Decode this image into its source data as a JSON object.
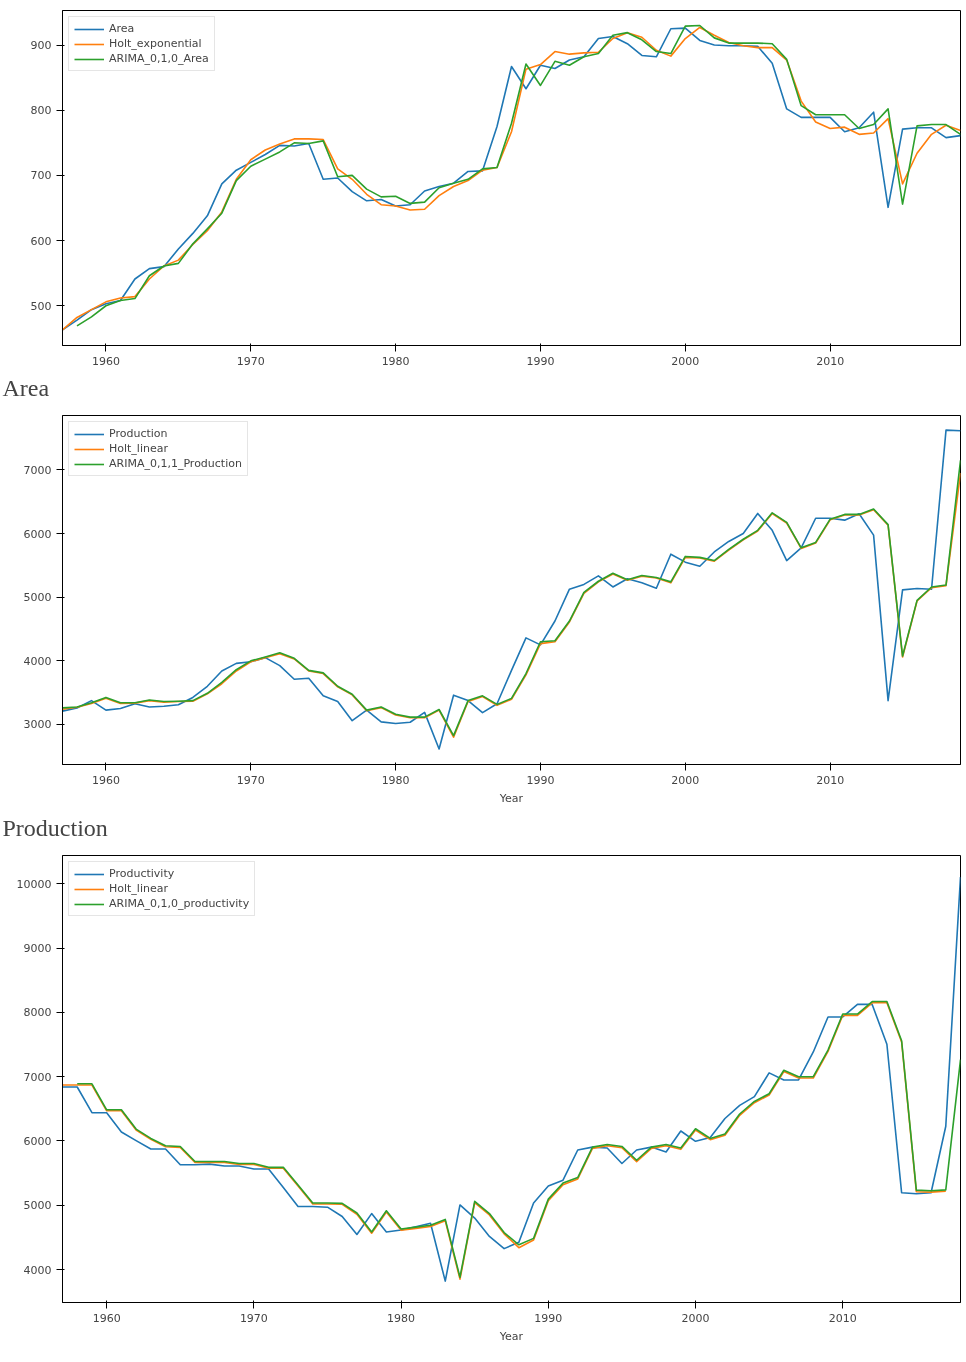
{
  "chart_data": [
    {
      "type": "line",
      "title": "Area",
      "xlim": [
        1957,
        2019
      ],
      "ylim": [
        439,
        953
      ],
      "xticks": [
        1960,
        1970,
        1980,
        1990,
        2000,
        2010
      ],
      "yticks": [
        500,
        600,
        700,
        800,
        900
      ],
      "grid": false,
      "legend": "top left",
      "line_style": "solid",
      "marker": "none",
      "x": [
        1957,
        1958,
        1959,
        1960,
        1961,
        1962,
        1963,
        1964,
        1965,
        1966,
        1967,
        1968,
        1969,
        1970,
        1971,
        1972,
        1973,
        1974,
        1975,
        1976,
        1977,
        1978,
        1979,
        1980,
        1981,
        1982,
        1983,
        1984,
        1985,
        1986,
        1987,
        1988,
        1989,
        1990,
        1991,
        1992,
        1993,
        1994,
        1995,
        1996,
        1997,
        1998,
        1999,
        2000,
        2001,
        2002,
        2003,
        2004,
        2005,
        2006,
        2007,
        2008,
        2009,
        2010,
        2011,
        2012,
        2013,
        2014,
        2015,
        2016,
        2017,
        2018,
        2019
      ],
      "series": [
        {
          "name": "Area",
          "color": "#1f77b4",
          "values": [
            463,
            478,
            494,
            503,
            508,
            541,
            557,
            560,
            587,
            611,
            638,
            687,
            708,
            720,
            732,
            746,
            745,
            749,
            694,
            696,
            675,
            661,
            663,
            653,
            655,
            676,
            683,
            688,
            706,
            707,
            775,
            867,
            833,
            869,
            864,
            877,
            882,
            910,
            913,
            902,
            884,
            882,
            925,
            926,
            907,
            900,
            899,
            899,
            898,
            872,
            802,
            789,
            789,
            789,
            767,
            773,
            797,
            651,
            771,
            773,
            773,
            758,
            761
          ]
        },
        {
          "name": "Holt_exponential",
          "color": "#ff7f0e",
          "values": [
            463,
            482,
            494,
            506,
            512,
            514,
            541,
            561,
            570,
            594,
            615,
            644,
            694,
            724,
            739,
            748,
            756,
            756,
            755,
            710,
            694,
            671,
            655,
            653,
            647,
            648,
            669,
            683,
            692,
            708,
            712,
            767,
            863,
            870,
            890,
            886,
            888,
            889,
            910,
            919,
            912,
            892,
            883,
            910,
            927,
            915,
            904,
            899,
            896,
            896,
            877,
            814,
            782,
            772,
            774,
            763,
            765,
            787,
            687,
            734,
            763,
            777,
            769
          ]
        },
        {
          "name": "ARIMA_0,1,0_Area",
          "color": "#2ca02c",
          "values": [
            null,
            469,
            483,
            500,
            508,
            511,
            546,
            561,
            565,
            595,
            618,
            642,
            692,
            714,
            725,
            736,
            750,
            749,
            753,
            698,
            700,
            679,
            667,
            668,
            657,
            659,
            681,
            688,
            694,
            710,
            712,
            780,
            871,
            838,
            875,
            869,
            882,
            887,
            915,
            919,
            908,
            890,
            887,
            929,
            930,
            911,
            903,
            903,
            903,
            902,
            878,
            807,
            793,
            793,
            793,
            772,
            778,
            802,
            656,
            776,
            778,
            778,
            763
          ]
        }
      ]
    },
    {
      "type": "line",
      "title": "Production",
      "xlabel": "Year",
      "xlim": [
        1957,
        2019
      ],
      "ylim": [
        2371,
        7854
      ],
      "xticks": [
        1960,
        1970,
        1980,
        1990,
        2000,
        2010
      ],
      "yticks": [
        3000,
        4000,
        5000,
        6000,
        7000
      ],
      "grid": false,
      "legend": "top left",
      "line_style": "solid",
      "marker": "none",
      "x": [
        1957,
        1958,
        1959,
        1960,
        1961,
        1962,
        1963,
        1964,
        1965,
        1966,
        1967,
        1968,
        1969,
        1970,
        1971,
        1972,
        1973,
        1974,
        1975,
        1976,
        1977,
        1978,
        1979,
        1980,
        1981,
        1982,
        1983,
        1984,
        1985,
        1986,
        1987,
        1988,
        1989,
        1990,
        1991,
        1992,
        1993,
        1994,
        1995,
        1996,
        1997,
        1998,
        1999,
        2000,
        2001,
        2002,
        2003,
        2004,
        2005,
        2006,
        2007,
        2008,
        2009,
        2010,
        2011,
        2012,
        2013,
        2014,
        2015,
        2016,
        2017,
        2018,
        2019
      ],
      "series": [
        {
          "name": "Production",
          "color": "#1f77b4",
          "values": [
            3210,
            3260,
            3375,
            3225,
            3250,
            3325,
            3275,
            3285,
            3310,
            3425,
            3600,
            3840,
            3960,
            3985,
            4050,
            3925,
            3710,
            3725,
            3450,
            3360,
            3060,
            3225,
            3040,
            3015,
            3035,
            3190,
            2615,
            3460,
            3375,
            3185,
            3325,
            3850,
            4360,
            4250,
            4625,
            5125,
            5200,
            5335,
            5160,
            5290,
            5225,
            5140,
            5675,
            5550,
            5485,
            5710,
            5875,
            6000,
            6315,
            6050,
            5575,
            5775,
            6240,
            6240,
            6210,
            6310,
            5975,
            3375,
            5115,
            5135,
            5125,
            7625,
            7615
          ]
        },
        {
          "name": "Holt_linear",
          "color": "#ff7f0e",
          "values": [
            3240,
            3270,
            3330,
            3410,
            3330,
            3335,
            3375,
            3350,
            3360,
            3365,
            3480,
            3640,
            3840,
            3985,
            4050,
            4110,
            4030,
            3840,
            3800,
            3590,
            3465,
            3215,
            3265,
            3150,
            3105,
            3105,
            3225,
            2800,
            3360,
            3440,
            3300,
            3395,
            3780,
            4270,
            4300,
            4610,
            5060,
            5240,
            5365,
            5265,
            5330,
            5300,
            5225,
            5625,
            5615,
            5565,
            5740,
            5900,
            6040,
            6315,
            6165,
            5765,
            5850,
            6215,
            6290,
            6290,
            6375,
            6130,
            4060,
            4940,
            5150,
            5180,
            6950
          ]
        },
        {
          "name": "ARIMA_0,1,1_Production",
          "color": "#2ca02c",
          "values": [
            3260,
            3275,
            3340,
            3425,
            3340,
            3340,
            3385,
            3360,
            3365,
            3375,
            3490,
            3660,
            3860,
            4000,
            4060,
            4125,
            4040,
            3850,
            3810,
            3600,
            3475,
            3225,
            3275,
            3160,
            3115,
            3115,
            3235,
            2825,
            3375,
            3450,
            3315,
            3410,
            3800,
            4300,
            4315,
            4625,
            5075,
            5250,
            5375,
            5275,
            5340,
            5310,
            5240,
            5640,
            5625,
            5575,
            5750,
            5910,
            6050,
            6325,
            6175,
            5775,
            5860,
            6225,
            6300,
            6300,
            6385,
            6140,
            4075,
            4950,
            5160,
            5190,
            7150
          ]
        }
      ]
    },
    {
      "type": "line",
      "xlabel": "Year",
      "xlim": [
        1957,
        2018
      ],
      "ylim": [
        3487,
        10442
      ],
      "xticks": [
        1960,
        1970,
        1980,
        1990,
        2000,
        2010
      ],
      "yticks": [
        4000,
        5000,
        6000,
        7000,
        8000,
        9000,
        10000
      ],
      "grid": false,
      "legend": "top left",
      "line_style": "solid",
      "marker": "none",
      "x": [
        1957,
        1958,
        1959,
        1960,
        1961,
        1962,
        1963,
        1964,
        1965,
        1966,
        1967,
        1968,
        1969,
        1970,
        1971,
        1972,
        1973,
        1974,
        1975,
        1976,
        1977,
        1978,
        1979,
        1980,
        1981,
        1982,
        1983,
        1984,
        1985,
        1986,
        1987,
        1988,
        1989,
        1990,
        1991,
        1992,
        1993,
        1994,
        1995,
        1996,
        1997,
        1998,
        1999,
        2000,
        2001,
        2002,
        2003,
        2004,
        2005,
        2006,
        2007,
        2008,
        2009,
        2010,
        2011,
        2012,
        2013,
        2014,
        2015,
        2016,
        2017,
        2018
      ],
      "series": [
        {
          "name": "Productivity",
          "color": "#1f77b4",
          "values": [
            6840,
            6840,
            6440,
            6440,
            6140,
            6005,
            5875,
            5875,
            5630,
            5630,
            5640,
            5610,
            5610,
            5565,
            5565,
            5275,
            4980,
            4980,
            4970,
            4825,
            4545,
            4870,
            4585,
            4615,
            4665,
            4720,
            3820,
            5005,
            4800,
            4515,
            4325,
            4425,
            5035,
            5300,
            5390,
            5860,
            5905,
            5890,
            5650,
            5860,
            5905,
            5830,
            6155,
            5995,
            6055,
            6350,
            6555,
            6690,
            7060,
            6950,
            6950,
            7385,
            7930,
            7930,
            8125,
            8125,
            7505,
            5195,
            5180,
            5195,
            6230,
            10105
          ]
        },
        {
          "name": "Holt_linear",
          "color": "#ff7f0e",
          "values": [
            6870,
            6870,
            6870,
            6470,
            6470,
            6170,
            6025,
            5910,
            5900,
            5665,
            5665,
            5665,
            5635,
            5635,
            5575,
            5575,
            5300,
            5020,
            5020,
            5015,
            4860,
            4565,
            4895,
            4610,
            4640,
            4670,
            4760,
            3850,
            5040,
            4850,
            4555,
            4340,
            4460,
            5070,
            5320,
            5410,
            5885,
            5925,
            5895,
            5680,
            5885,
            5925,
            5870,
            6170,
            6020,
            6090,
            6400,
            6595,
            6715,
            7080,
            6980,
            6980,
            7395,
            7955,
            7955,
            8150,
            8150,
            7540,
            5210,
            5205,
            5220,
            null
          ]
        },
        {
          "name": "ARIMA_0,1,0_productivity",
          "color": "#2ca02c",
          "values": [
            null,
            6890,
            6890,
            6485,
            6485,
            6185,
            6040,
            5925,
            5915,
            5680,
            5680,
            5680,
            5650,
            5650,
            5590,
            5590,
            5315,
            5035,
            5035,
            5030,
            4880,
            4585,
            4915,
            4630,
            4660,
            4690,
            4780,
            3880,
            5060,
            4870,
            4575,
            4385,
            4485,
            5095,
            5345,
            5430,
            5905,
            5945,
            5915,
            5700,
            5905,
            5945,
            5890,
            6190,
            6040,
            6110,
            6420,
            6615,
            6735,
            7100,
            7000,
            7000,
            7415,
            7975,
            7975,
            8170,
            8170,
            7560,
            5235,
            5225,
            5240,
            7265
          ]
        }
      ]
    }
  ]
}
